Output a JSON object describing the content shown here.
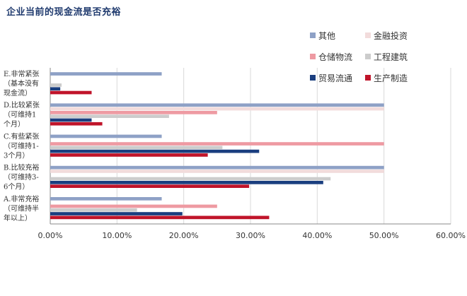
{
  "title": "企业当前的现金流是否充裕",
  "chart_data": {
    "type": "bar",
    "orientation": "horizontal",
    "title": "企业当前的现金流是否充裕",
    "xlabel": "",
    "ylabel": "",
    "xlim": [
      0,
      0.6
    ],
    "x_ticks": [
      "0.00%",
      "10.00%",
      "20.00%",
      "30.00%",
      "40.00%",
      "50.00%",
      "60.00%"
    ],
    "grid": true,
    "legend_position": "top-right",
    "categories": [
      "E.非常紧张（基本没有现金流）",
      "D.比较紧张（可维持1个月）",
      "C.有些紧张（可维持1-3个月）",
      "B.比较充裕（可维持3-6个月）",
      "A.非常充裕（可维持半年以上）"
    ],
    "category_lines": [
      [
        "E.非常紧张",
        "（基本没有",
        "现金流）"
      ],
      [
        "D.比较紧张",
        "（可维持1",
        "个月）"
      ],
      [
        "C.有些紧张",
        "（可维持1-",
        "3个月）"
      ],
      [
        "B.比较充裕",
        "（可维持3-",
        "6个月）"
      ],
      [
        "A.非常充裕",
        "（可维持半",
        "年以上）"
      ]
    ],
    "series": [
      {
        "name": "其他",
        "color": "#8ea1c6",
        "values": [
          0.167,
          0.5,
          0.167,
          0.5,
          0.167
        ]
      },
      {
        "name": "金融投资",
        "color": "#f2dcdc",
        "values": [
          0.0,
          0.5,
          0.0,
          0.5,
          0.0
        ]
      },
      {
        "name": "仓储物流",
        "color": "#ee9aa2",
        "values": [
          0.0,
          0.25,
          0.5,
          0.0,
          0.25
        ]
      },
      {
        "name": "工程建筑",
        "color": "#cccccc",
        "values": [
          0.017,
          0.178,
          0.258,
          0.42,
          0.13
        ]
      },
      {
        "name": "贸易流通",
        "color": "#1a3e7f",
        "values": [
          0.015,
          0.062,
          0.313,
          0.409,
          0.198
        ]
      },
      {
        "name": "生产制造",
        "color": "#c0142a",
        "values": [
          0.062,
          0.078,
          0.236,
          0.298,
          0.328
        ]
      }
    ]
  }
}
